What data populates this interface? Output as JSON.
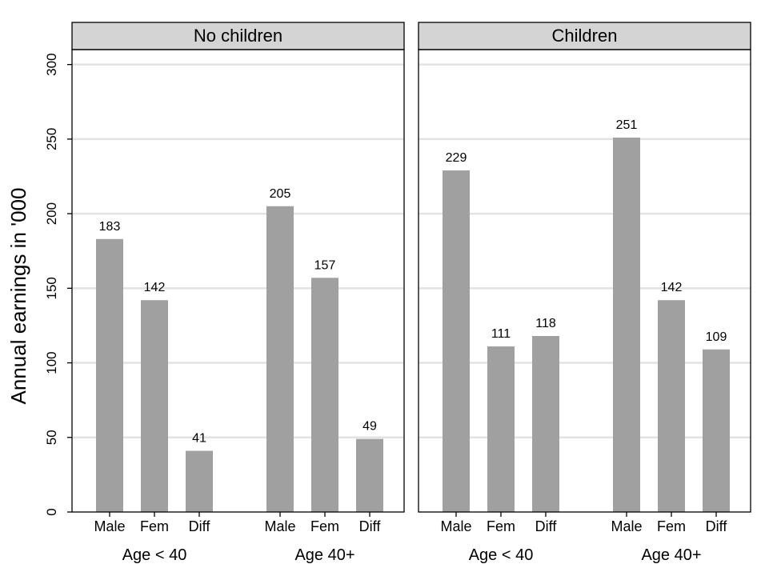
{
  "chart_data": {
    "type": "bar",
    "ylabel": "Annual earnings in '000",
    "ylim": [
      0,
      310
    ],
    "yticks": [
      "0",
      "50",
      "100",
      "150",
      "200",
      "250",
      "300"
    ],
    "grid": true,
    "bar_color": "#a0a0a0",
    "panels": [
      {
        "title": "No children",
        "groups": [
          {
            "label": "Age < 40",
            "categories": [
              "Male",
              "Fem",
              "Diff"
            ],
            "values": [
              183,
              142,
              41
            ]
          },
          {
            "label": "Age 40+",
            "categories": [
              "Male",
              "Fem",
              "Diff"
            ],
            "values": [
              205,
              157,
              49
            ]
          }
        ]
      },
      {
        "title": "Children",
        "groups": [
          {
            "label": "Age < 40",
            "categories": [
              "Male",
              "Fem",
              "Diff"
            ],
            "values": [
              229,
              111,
              118
            ]
          },
          {
            "label": "Age 40+",
            "categories": [
              "Male",
              "Fem",
              "Diff"
            ],
            "values": [
              251,
              142,
              109
            ]
          }
        ]
      }
    ]
  }
}
